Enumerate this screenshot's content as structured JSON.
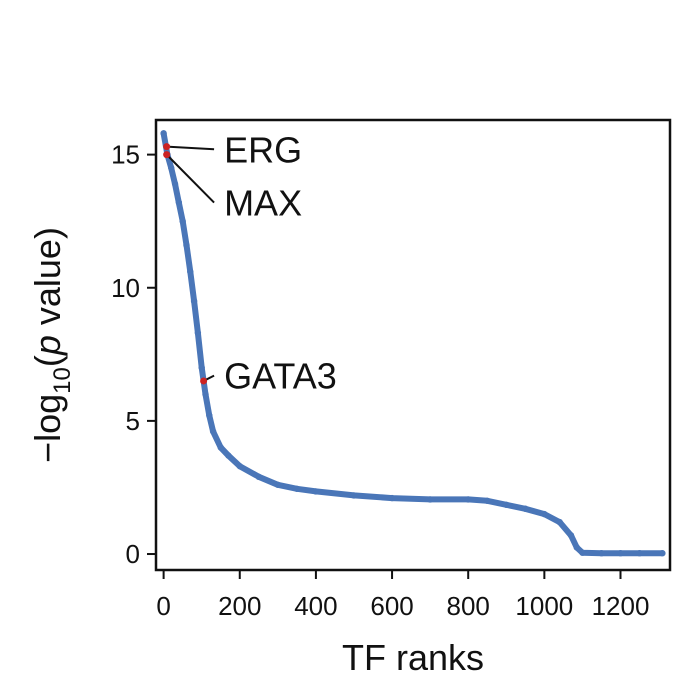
{
  "chart_data": {
    "type": "scatter",
    "xlabel": "TF ranks",
    "ylabel_parts": [
      "−log",
      "10",
      "(",
      "p",
      " value)"
    ],
    "xlim": [
      -20,
      1330
    ],
    "ylim": [
      -0.6,
      16.3
    ],
    "xticks": [
      0,
      200,
      400,
      600,
      800,
      1000,
      1200
    ],
    "xtick_labels": [
      "0",
      "200",
      "400",
      "600",
      "800",
      "1000",
      "1200"
    ],
    "yticks": [
      0,
      5,
      10,
      15
    ],
    "ytick_labels": [
      "0",
      "5",
      "10",
      "15"
    ],
    "grid": false,
    "series": [
      {
        "color": "#4a76b8",
        "curve_points": [
          {
            "x": 0,
            "y": 15.8
          },
          {
            "x": 10,
            "y": 15.0
          },
          {
            "x": 20,
            "y": 14.5
          },
          {
            "x": 30,
            "y": 13.9
          },
          {
            "x": 40,
            "y": 13.2
          },
          {
            "x": 50,
            "y": 12.5
          },
          {
            "x": 60,
            "y": 11.6
          },
          {
            "x": 70,
            "y": 10.6
          },
          {
            "x": 80,
            "y": 9.5
          },
          {
            "x": 90,
            "y": 8.3
          },
          {
            "x": 100,
            "y": 7.0
          },
          {
            "x": 110,
            "y": 6.0
          },
          {
            "x": 120,
            "y": 5.2
          },
          {
            "x": 130,
            "y": 4.6
          },
          {
            "x": 150,
            "y": 4.0
          },
          {
            "x": 170,
            "y": 3.7
          },
          {
            "x": 200,
            "y": 3.3
          },
          {
            "x": 250,
            "y": 2.9
          },
          {
            "x": 300,
            "y": 2.6
          },
          {
            "x": 350,
            "y": 2.45
          },
          {
            "x": 400,
            "y": 2.35
          },
          {
            "x": 500,
            "y": 2.2
          },
          {
            "x": 600,
            "y": 2.1
          },
          {
            "x": 700,
            "y": 2.05
          },
          {
            "x": 800,
            "y": 2.05
          },
          {
            "x": 850,
            "y": 2.0
          },
          {
            "x": 900,
            "y": 1.85
          },
          {
            "x": 950,
            "y": 1.7
          },
          {
            "x": 1000,
            "y": 1.5
          },
          {
            "x": 1040,
            "y": 1.2
          },
          {
            "x": 1070,
            "y": 0.7
          },
          {
            "x": 1085,
            "y": 0.25
          },
          {
            "x": 1100,
            "y": 0.05
          },
          {
            "x": 1150,
            "y": 0.03
          },
          {
            "x": 1200,
            "y": 0.03
          },
          {
            "x": 1250,
            "y": 0.03
          },
          {
            "x": 1310,
            "y": 0.03
          }
        ]
      }
    ],
    "highlighted": [
      {
        "label": "ERG",
        "x": 8,
        "y": 15.3,
        "label_x": 80,
        "label_y": 15.2,
        "color": "#cc2222"
      },
      {
        "label": "MAX",
        "x": 8,
        "y": 15.0,
        "label_x": 80,
        "label_y": 13.2,
        "color": "#cc2222"
      },
      {
        "label": "GATA3",
        "x": 105,
        "y": 6.5,
        "label_x": 80,
        "label_y": 6.7,
        "color": "#cc2222"
      }
    ]
  }
}
